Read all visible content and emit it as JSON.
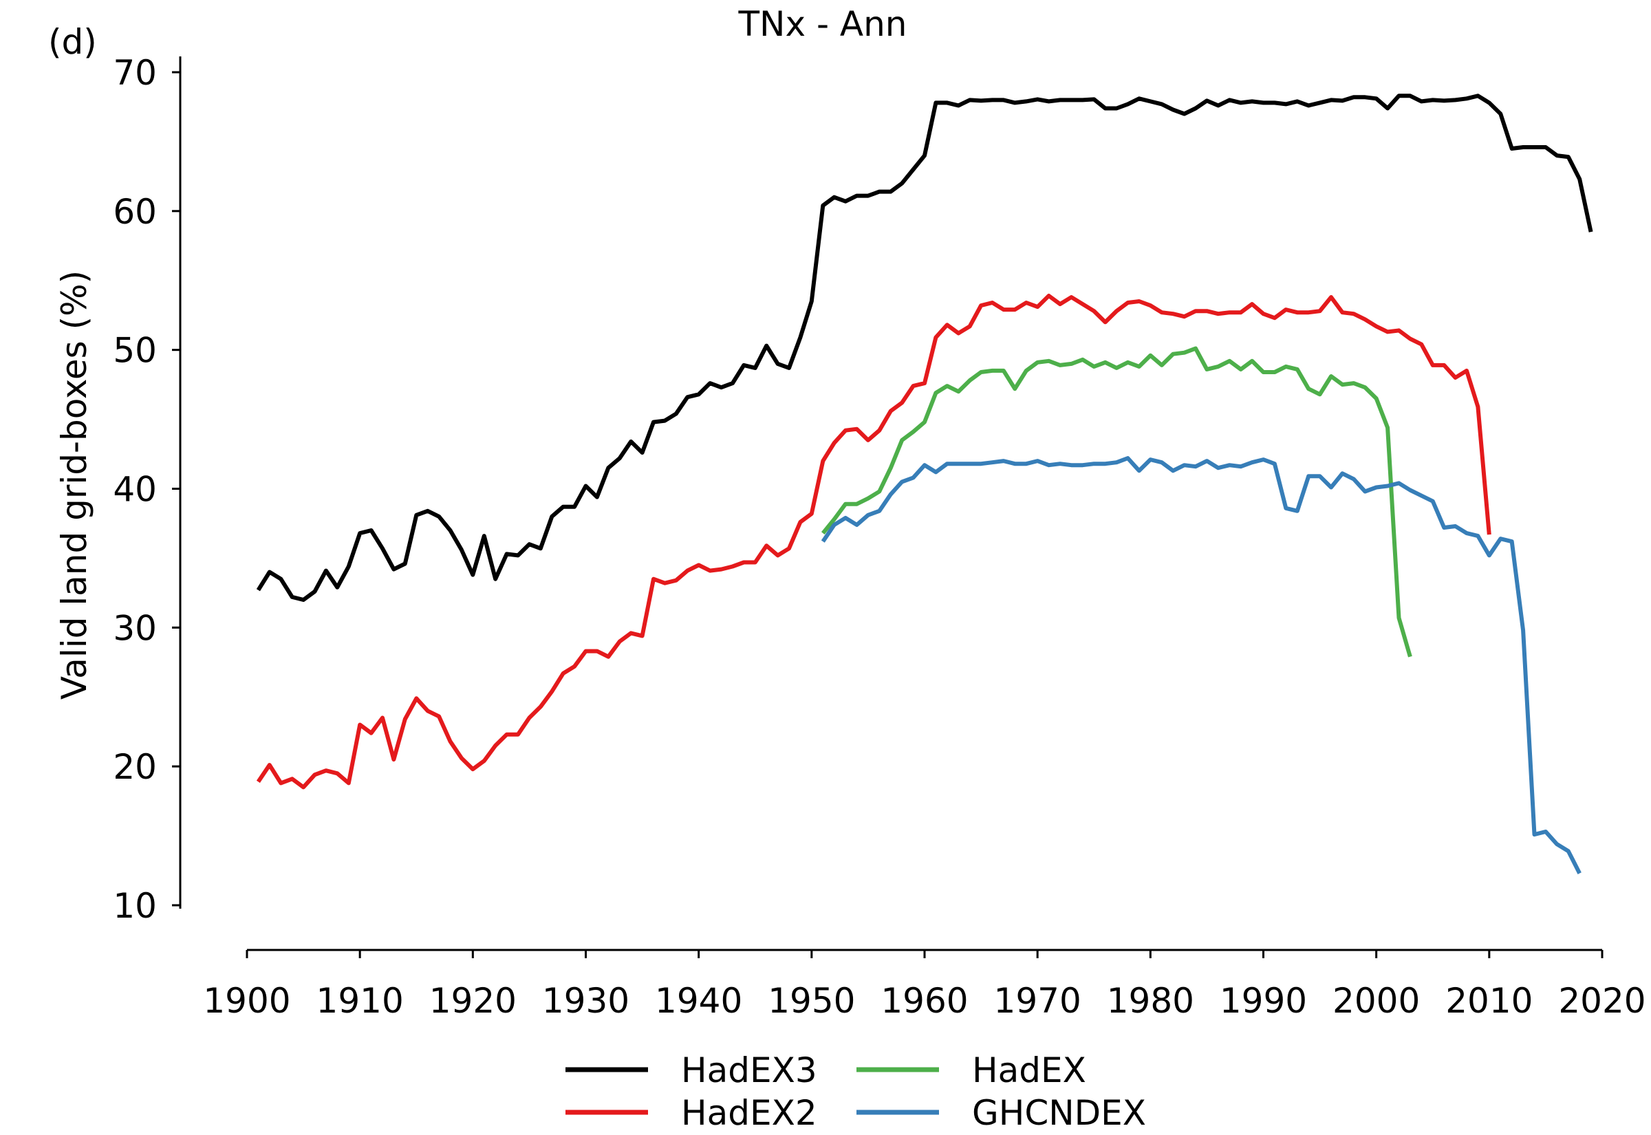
{
  "panel_label": "(d)",
  "chart_data": {
    "type": "line",
    "title": "TNx - Ann",
    "xlabel": "",
    "ylabel": "Valid land grid-boxes (%)",
    "xlim": [
      1900,
      2020
    ],
    "ylim": [
      10,
      70
    ],
    "xticks": [
      1900,
      1910,
      1920,
      1930,
      1940,
      1950,
      1960,
      1970,
      1980,
      1990,
      2000,
      2010,
      2020
    ],
    "yticks": [
      10,
      20,
      30,
      40,
      50,
      60,
      70
    ],
    "grid": false,
    "legend_position": "bottom",
    "series": [
      {
        "name": "HadEX3",
        "color": "#000000",
        "x_start": 1901,
        "values": [
          32.7,
          34.0,
          33.5,
          32.2,
          32.0,
          32.6,
          34.1,
          32.9,
          34.4,
          36.8,
          37.0,
          35.7,
          34.2,
          34.6,
          38.1,
          38.4,
          38.0,
          37.0,
          35.6,
          33.8,
          36.6,
          33.5,
          35.3,
          35.2,
          36.0,
          35.7,
          38.0,
          38.7,
          38.7,
          40.2,
          39.4,
          41.5,
          42.2,
          43.4,
          42.6,
          44.8,
          44.9,
          45.4,
          46.6,
          46.8,
          47.6,
          47.3,
          47.6,
          48.9,
          48.7,
          50.3,
          49.0,
          48.7,
          50.9,
          53.5,
          60.4,
          61.0,
          60.7,
          61.1,
          61.1,
          61.4,
          61.4,
          62.0,
          63.0,
          64.0,
          67.8,
          67.8,
          67.6,
          68.0,
          67.95,
          68.0,
          68.0,
          67.8,
          67.9,
          68.05,
          67.9,
          68.0,
          68.0,
          68.0,
          68.05,
          67.4,
          67.4,
          67.7,
          68.1,
          67.9,
          67.7,
          67.3,
          67.0,
          67.4,
          67.95,
          67.6,
          68.0,
          67.8,
          67.9,
          67.8,
          67.8,
          67.7,
          67.9,
          67.6,
          67.8,
          68.0,
          67.95,
          68.2,
          68.2,
          68.1,
          67.4,
          68.3,
          68.3,
          67.9,
          68.0,
          67.95,
          68.0,
          68.1,
          68.3,
          67.8,
          67.0,
          64.5,
          64.6,
          64.6,
          64.6,
          64.0,
          63.9,
          62.3,
          58.5
        ]
      },
      {
        "name": "HadEX2",
        "color": "#e41a1c",
        "x_start": 1901,
        "values": [
          18.9,
          20.1,
          18.8,
          19.1,
          18.5,
          19.4,
          19.7,
          19.5,
          18.8,
          23.0,
          22.4,
          23.5,
          20.5,
          23.4,
          24.9,
          24.0,
          23.6,
          21.8,
          20.6,
          19.8,
          20.4,
          21.5,
          22.3,
          22.3,
          23.5,
          24.3,
          25.4,
          26.7,
          27.2,
          28.3,
          28.3,
          27.9,
          29.0,
          29.6,
          29.4,
          33.5,
          33.2,
          33.4,
          34.1,
          34.5,
          34.1,
          34.2,
          34.4,
          34.7,
          34.7,
          35.9,
          35.2,
          35.7,
          37.6,
          38.2,
          42.0,
          43.3,
          44.2,
          44.3,
          43.5,
          44.2,
          45.6,
          46.2,
          47.4,
          47.6,
          50.9,
          51.8,
          51.2,
          51.7,
          53.2,
          53.4,
          52.9,
          52.9,
          53.4,
          53.1,
          53.9,
          53.3,
          53.8,
          53.3,
          52.8,
          52.0,
          52.8,
          53.4,
          53.5,
          53.2,
          52.7,
          52.6,
          52.4,
          52.8,
          52.8,
          52.6,
          52.7,
          52.7,
          53.3,
          52.6,
          52.3,
          52.9,
          52.7,
          52.7,
          52.8,
          53.8,
          52.7,
          52.6,
          52.2,
          51.7,
          51.3,
          51.4,
          50.8,
          50.4,
          48.9,
          48.9,
          48.0,
          48.5,
          45.9,
          36.7
        ]
      },
      {
        "name": "HadEX",
        "color": "#4daf4a",
        "x_start": 1951,
        "values": [
          36.8,
          37.8,
          38.9,
          38.9,
          39.3,
          39.8,
          41.5,
          43.5,
          44.1,
          44.8,
          46.9,
          47.4,
          47.0,
          47.8,
          48.4,
          48.5,
          48.5,
          47.2,
          48.5,
          49.1,
          49.2,
          48.9,
          49.0,
          49.3,
          48.8,
          49.1,
          48.7,
          49.1,
          48.8,
          49.6,
          48.9,
          49.7,
          49.8,
          50.1,
          48.6,
          48.8,
          49.2,
          48.6,
          49.2,
          48.4,
          48.4,
          48.8,
          48.6,
          47.2,
          46.8,
          48.1,
          47.5,
          47.6,
          47.3,
          46.5,
          44.4,
          30.7,
          27.9
        ]
      },
      {
        "name": "GHCNDEX",
        "color": "#377eb8",
        "x_start": 1951,
        "values": [
          36.2,
          37.4,
          37.9,
          37.4,
          38.1,
          38.4,
          39.6,
          40.5,
          40.8,
          41.7,
          41.2,
          41.8,
          41.8,
          41.8,
          41.8,
          41.9,
          42.0,
          41.8,
          41.8,
          42.0,
          41.7,
          41.8,
          41.7,
          41.7,
          41.8,
          41.8,
          41.9,
          42.2,
          41.3,
          42.1,
          41.9,
          41.3,
          41.7,
          41.6,
          42.0,
          41.5,
          41.7,
          41.6,
          41.9,
          42.1,
          41.8,
          38.6,
          38.4,
          40.9,
          40.9,
          40.1,
          41.1,
          40.7,
          39.8,
          40.1,
          40.2,
          40.4,
          39.9,
          39.5,
          39.1,
          37.2,
          37.3,
          36.8,
          36.6,
          35.2,
          36.4,
          36.2,
          29.8,
          15.1,
          15.3,
          14.4,
          13.9,
          12.3
        ]
      }
    ]
  }
}
